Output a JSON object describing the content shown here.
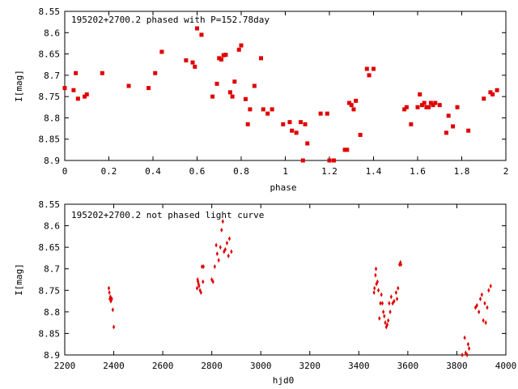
{
  "colors": {
    "points": "#e00000",
    "axis": "#000000",
    "background": "#ffffff"
  },
  "chart_data": [
    {
      "type": "scatter",
      "title": "195202+2700.2 phased with P=152.78day",
      "xlabel": "phase",
      "ylabel": "I[mag]",
      "xlim": [
        0,
        2
      ],
      "ylim": [
        8.9,
        8.55
      ],
      "y_inverted": true,
      "grid": false,
      "marker": "filled-square",
      "x_ticks": [
        "0",
        "0.2",
        "0.4",
        "0.6",
        "0.8",
        "1",
        "1.2",
        "1.4",
        "1.6",
        "1.8",
        "2"
      ],
      "y_ticks": [
        "8.55",
        "8.6",
        "8.65",
        "8.7",
        "8.75",
        "8.8",
        "8.85",
        "8.9"
      ],
      "x_tick_values": [
        0,
        0.2,
        0.4,
        0.6,
        0.8,
        1.0,
        1.2,
        1.4,
        1.6,
        1.8,
        2.0
      ],
      "y_tick_values": [
        8.55,
        8.6,
        8.65,
        8.7,
        8.75,
        8.8,
        8.85,
        8.9
      ],
      "x": [
        0.0,
        0.04,
        0.05,
        0.06,
        0.09,
        0.1,
        0.17,
        0.29,
        0.38,
        0.41,
        0.44,
        0.55,
        0.58,
        0.59,
        0.6,
        0.62,
        0.67,
        0.69,
        0.7,
        0.71,
        0.72,
        0.73,
        0.75,
        0.76,
        0.77,
        0.79,
        0.8,
        0.82,
        0.83,
        0.84,
        0.86,
        0.89,
        0.9,
        0.92,
        0.94,
        0.99,
        1.02,
        1.03,
        1.05,
        1.07,
        1.08,
        1.09,
        1.1,
        1.16,
        1.19,
        1.2,
        1.22,
        1.27,
        1.28,
        1.29,
        1.3,
        1.31,
        1.32,
        1.34,
        1.37,
        1.38,
        1.4,
        1.54,
        1.55,
        1.57,
        1.6,
        1.61,
        1.62,
        1.63,
        1.64,
        1.65,
        1.66,
        1.67,
        1.68,
        1.7,
        1.73,
        1.74,
        1.76,
        1.78,
        1.83,
        1.9,
        1.93,
        1.94,
        1.96
      ],
      "y": [
        8.73,
        8.735,
        8.695,
        8.755,
        8.75,
        8.745,
        8.695,
        8.725,
        8.73,
        8.695,
        8.645,
        8.665,
        8.67,
        8.68,
        8.59,
        8.605,
        8.75,
        8.72,
        8.66,
        8.663,
        8.653,
        8.652,
        8.74,
        8.75,
        8.715,
        8.64,
        8.63,
        8.756,
        8.815,
        8.78,
        8.725,
        8.66,
        8.78,
        8.79,
        8.78,
        8.815,
        8.81,
        8.83,
        8.835,
        8.81,
        8.9,
        8.815,
        8.86,
        8.79,
        8.79,
        8.9,
        8.905,
        8.875,
        8.875,
        8.765,
        8.77,
        8.78,
        8.76,
        8.84,
        8.685,
        8.7,
        8.685,
        8.78,
        8.775,
        8.815,
        8.775,
        8.745,
        8.77,
        8.765,
        8.775,
        8.775,
        8.765,
        8.77,
        8.765,
        8.77,
        8.835,
        8.795,
        8.82,
        8.775,
        8.83,
        8.755,
        8.74,
        8.745,
        8.735
      ]
    },
    {
      "type": "scatter",
      "title": "195202+2700.2 not phased light curve",
      "xlabel": "hjd0",
      "ylabel": "I[mag]",
      "xlim": [
        2200,
        4000
      ],
      "ylim": [
        8.9,
        8.55
      ],
      "y_inverted": true,
      "grid": false,
      "marker": "small-diamond",
      "x_ticks": [
        "2200",
        "2400",
        "2600",
        "2800",
        "3000",
        "3200",
        "3400",
        "3600",
        "3800",
        "4000"
      ],
      "y_ticks": [
        "8.55",
        "8.6",
        "8.65",
        "8.7",
        "8.75",
        "8.8",
        "8.85",
        "8.9"
      ],
      "x_tick_values": [
        2200,
        2400,
        2600,
        2800,
        3000,
        3200,
        3400,
        3600,
        3800,
        4000
      ],
      "y_tick_values": [
        8.55,
        8.6,
        8.65,
        8.7,
        8.75,
        8.8,
        8.85,
        8.9
      ],
      "x": [
        2380,
        2382,
        2384,
        2386,
        2388,
        2390,
        2392,
        2396,
        2400,
        2740,
        2742,
        2744,
        2746,
        2748,
        2752,
        2756,
        2760,
        2764,
        2766,
        2800,
        2805,
        2812,
        2818,
        2822,
        2828,
        2835,
        2840,
        2845,
        2850,
        2855,
        2862,
        2868,
        2872,
        2880,
        3462,
        3464,
        3468,
        3470,
        3472,
        3476,
        3480,
        3484,
        3488,
        3492,
        3496,
        3500,
        3504,
        3508,
        3512,
        3516,
        3520,
        3524,
        3528,
        3532,
        3538,
        3544,
        3552,
        3556,
        3560,
        3566,
        3570,
        3572,
        3822,
        3832,
        3836,
        3842,
        3846,
        3850,
        3876,
        3882,
        3890,
        3896,
        3902,
        3908,
        3914,
        3918,
        3924,
        3930,
        3938
      ],
      "y": [
        8.745,
        8.755,
        8.77,
        8.765,
        8.775,
        8.77,
        8.77,
        8.795,
        8.835,
        8.745,
        8.725,
        8.73,
        8.735,
        8.74,
        8.75,
        8.755,
        8.695,
        8.73,
        8.695,
        8.725,
        8.73,
        8.695,
        8.645,
        8.665,
        8.68,
        8.65,
        8.61,
        8.59,
        8.66,
        8.655,
        8.64,
        8.67,
        8.63,
        8.66,
        8.755,
        8.745,
        8.715,
        8.7,
        8.735,
        8.73,
        8.75,
        8.815,
        8.78,
        8.76,
        8.78,
        8.8,
        8.81,
        8.825,
        8.835,
        8.83,
        8.82,
        8.78,
        8.8,
        8.765,
        8.78,
        8.775,
        8.755,
        8.77,
        8.745,
        8.69,
        8.685,
        8.69,
        8.905,
        8.86,
        8.895,
        8.9,
        8.875,
        8.885,
        8.79,
        8.785,
        8.8,
        8.77,
        8.76,
        8.82,
        8.78,
        8.825,
        8.79,
        8.75,
        8.74
      ]
    }
  ]
}
